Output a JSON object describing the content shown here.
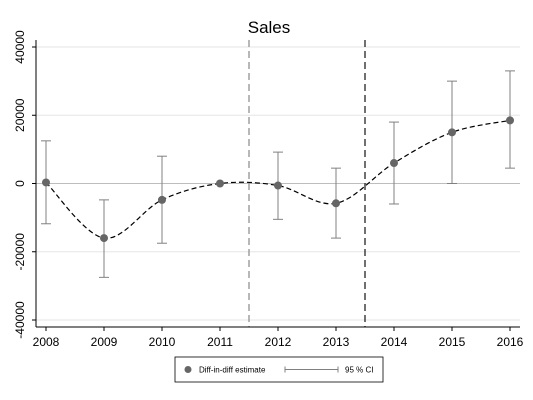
{
  "chart_data": {
    "type": "line",
    "title": "Sales",
    "xlabel": "",
    "ylabel": "",
    "x": [
      2008,
      2009,
      2010,
      2011,
      2012,
      2013,
      2014,
      2015,
      2016
    ],
    "xlim": [
      2008,
      2016
    ],
    "ylim": [
      -40000,
      40000
    ],
    "yticks": [
      -40000,
      -20000,
      0,
      20000,
      40000
    ],
    "ytick_labels": [
      "-40000",
      "-20000",
      "0",
      "20000",
      "40000"
    ],
    "xtick_labels": [
      "2008",
      "2009",
      "2010",
      "2011",
      "2012",
      "2013",
      "2014",
      "2015",
      "2016"
    ],
    "grid": true,
    "series": [
      {
        "name": "Diff-in-diff estimate",
        "values": [
          300,
          -16000,
          -4800,
          0,
          -600,
          -5800,
          6000,
          15000,
          18500
        ],
        "ci_lower": [
          -11800,
          -27500,
          -17500,
          0,
          -10500,
          -16000,
          -6000,
          0,
          4500
        ],
        "ci_upper": [
          12500,
          -4800,
          8000,
          0,
          9200,
          4500,
          18000,
          30000,
          33000
        ]
      }
    ],
    "reference_lines": [
      {
        "x": 2011.5,
        "style": "dashed",
        "color": "#999999"
      },
      {
        "x": 2013.5,
        "style": "dashed",
        "color": "#333333"
      }
    ],
    "legend": {
      "placement": "bottom",
      "entries": [
        "Diff-in-diff estimate",
        "95 % CI"
      ]
    },
    "colors": {
      "point": "#666666",
      "line": "#000000",
      "ci": "#808080",
      "grid": "#e6e6e6"
    }
  }
}
